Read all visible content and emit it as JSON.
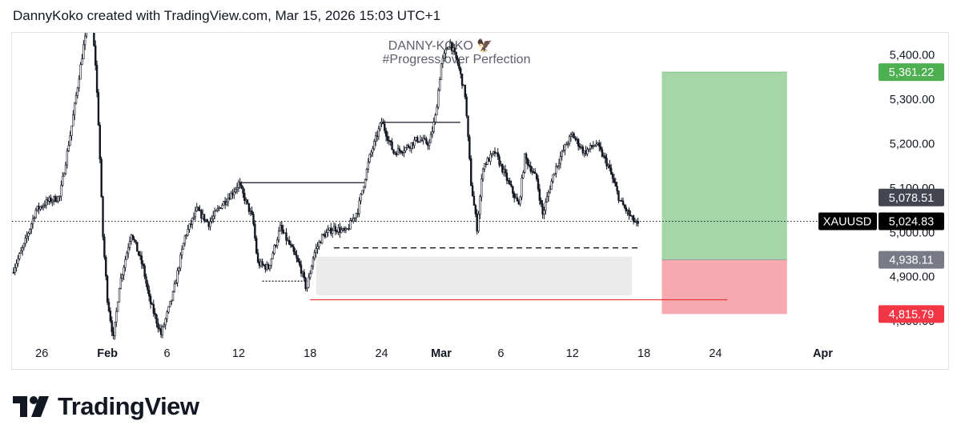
{
  "header": {
    "text": "DannyKoko created with TradingView.com, Mar 15, 2026 15:03 UTC+1"
  },
  "watermark": {
    "line1": "DANNY-KOKO 🦅",
    "line2": "#Progress over Perfection"
  },
  "footer": {
    "brand": "TradingView",
    "logo_icon": "tradingview-logo-icon"
  },
  "colors": {
    "candle": "#131722",
    "profit_zone": "#a5d6a7",
    "loss_zone": "#f7a9b0",
    "demand_zone": "#ebebeb",
    "stop_line": "#e53935",
    "price_label": "#000000",
    "tp_label": "#4caf50",
    "sl_label": "#f23645",
    "entry_label": "#787b86",
    "dark_label": "#434651"
  },
  "chart_data": {
    "type": "candlestick",
    "symbol": "XAUUSD",
    "x_ticks": [
      {
        "label": "26",
        "x": 26.5
      },
      {
        "label": "Feb",
        "x": 32
      },
      {
        "label": "6",
        "x": 37
      },
      {
        "label": "12",
        "x": 43
      },
      {
        "label": "18",
        "x": 49
      },
      {
        "label": "24",
        "x": 55
      },
      {
        "label": "Mar",
        "x": 60
      },
      {
        "label": "6",
        "x": 65
      },
      {
        "label": "12",
        "x": 71
      },
      {
        "label": "18",
        "x": 77
      },
      {
        "label": "24",
        "x": 83
      },
      {
        "label": "Apr",
        "x": 92
      }
    ],
    "y_axis": {
      "ylim": [
        4755,
        5450
      ],
      "ticks": [
        "5,400.00",
        "5,300.00",
        "5,200.00",
        "5,100.00",
        "5,000.00",
        "4,900.00",
        "4,800.00"
      ],
      "tick_values": [
        5400,
        5300,
        5200,
        5100,
        5000,
        4900,
        4800
      ]
    },
    "xlim": [
      24,
      96
    ],
    "price_path": [
      [
        24.0,
        4910
      ],
      [
        25.0,
        4970
      ],
      [
        26.0,
        5050
      ],
      [
        27.0,
        5070
      ],
      [
        28.0,
        5080
      ],
      [
        29.0,
        5240
      ],
      [
        30.0,
        5420
      ],
      [
        30.6,
        5500
      ],
      [
        31.0,
        5380
      ],
      [
        31.3,
        5220
      ],
      [
        31.6,
        5000
      ],
      [
        32.0,
        4850
      ],
      [
        32.5,
        4760
      ],
      [
        33.0,
        4880
      ],
      [
        34.0,
        5000
      ],
      [
        35.0,
        4920
      ],
      [
        35.5,
        4850
      ],
      [
        36.5,
        4770
      ],
      [
        37.5,
        4860
      ],
      [
        38.5,
        4990
      ],
      [
        39.5,
        5050
      ],
      [
        40.5,
        5020
      ],
      [
        41.5,
        5060
      ],
      [
        42.5,
        5090
      ],
      [
        43.0,
        5110
      ],
      [
        43.6,
        5070
      ],
      [
        44.2,
        5030
      ],
      [
        44.6,
        4930
      ],
      [
        45.5,
        4920
      ],
      [
        46.5,
        5010
      ],
      [
        47.5,
        4960
      ],
      [
        48.2,
        4920
      ],
      [
        48.7,
        4870
      ],
      [
        49.3,
        4950
      ],
      [
        50.0,
        4990
      ],
      [
        51.0,
        5010
      ],
      [
        52.0,
        5000
      ],
      [
        53.0,
        5050
      ],
      [
        54.0,
        5170
      ],
      [
        55.0,
        5250
      ],
      [
        56.0,
        5180
      ],
      [
        57.0,
        5190
      ],
      [
        58.0,
        5210
      ],
      [
        59.0,
        5200
      ],
      [
        59.5,
        5260
      ],
      [
        60.0,
        5380
      ],
      [
        60.7,
        5430
      ],
      [
        61.4,
        5380
      ],
      [
        62.0,
        5310
      ],
      [
        62.5,
        5110
      ],
      [
        63.0,
        5010
      ],
      [
        63.5,
        5150
      ],
      [
        64.5,
        5180
      ],
      [
        65.5,
        5120
      ],
      [
        66.5,
        5060
      ],
      [
        67.0,
        5170
      ],
      [
        68.0,
        5120
      ],
      [
        68.5,
        5040
      ],
      [
        69.5,
        5140
      ],
      [
        70.5,
        5200
      ],
      [
        71.0,
        5220
      ],
      [
        72.0,
        5180
      ],
      [
        73.0,
        5200
      ],
      [
        74.0,
        5150
      ],
      [
        75.0,
        5070
      ],
      [
        76.0,
        5030
      ],
      [
        76.5,
        5015
      ]
    ],
    "swing_lines": [
      {
        "x1": 43.0,
        "x2": 53.7,
        "y": 5112,
        "style": "solid"
      },
      {
        "x1": 55.0,
        "x2": 61.6,
        "y": 5248,
        "style": "solid"
      },
      {
        "x1": 45.0,
        "x2": 49.0,
        "y": 4890,
        "style": "dotted"
      },
      {
        "x1": 51.0,
        "x2": 76.5,
        "y": 4965,
        "style": "dashed"
      }
    ],
    "demand_zone": {
      "x1": 49.5,
      "x2": 76.0,
      "y_top": 4945,
      "y_bottom": 4858
    },
    "stop_line": {
      "x1": 49.0,
      "x2": 84.0,
      "y": 4848
    },
    "position": {
      "x1": 78.5,
      "x2": 89.0,
      "entry": 4938.11,
      "target": 5361.22,
      "stop": 4815.79
    },
    "price_labels": [
      {
        "text": "5,361.22",
        "value": 5361.22,
        "kind": "tp"
      },
      {
        "text": "5,078.51",
        "value": 5078.51,
        "kind": "dark"
      },
      {
        "text": "5,024.83",
        "value": 5024.83,
        "kind": "price"
      },
      {
        "text": "4,938.11",
        "value": 4938.11,
        "kind": "entry"
      },
      {
        "text": "4,815.79",
        "value": 4815.79,
        "kind": "sl"
      }
    ],
    "current_price": 5024.83
  }
}
